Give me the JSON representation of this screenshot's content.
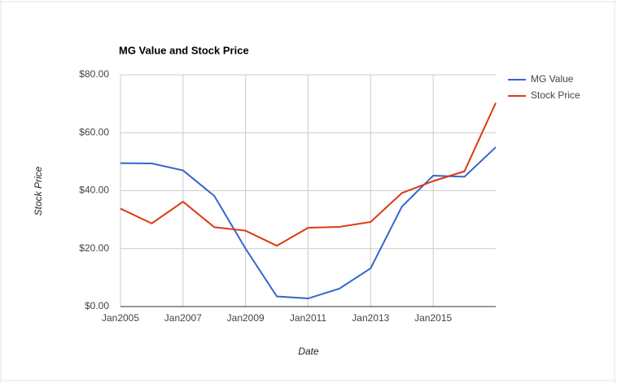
{
  "chart_data": {
    "type": "line",
    "title": "MG Value and Stock Price",
    "x_label": "Date",
    "y_label": "Stock Price",
    "x": [
      2005,
      2006,
      2007,
      2008,
      2009,
      2010,
      2011,
      2012,
      2013,
      2014,
      2015,
      2016,
      2017
    ],
    "series": [
      {
        "name": "MG Value",
        "color": "#3366cc",
        "values": [
          49.5,
          49.4,
          47,
          38.2,
          20,
          3.5,
          2.8,
          6.2,
          13.2,
          34.5,
          45.2,
          44.8,
          55
        ]
      },
      {
        "name": "Stock Price",
        "color": "#dc3912",
        "values": [
          33.8,
          28.7,
          36.2,
          27.4,
          26.2,
          21,
          27.2,
          27.5,
          29.2,
          39.2,
          43.3,
          46.7,
          70.3
        ]
      }
    ],
    "xlim": [
      2005,
      2017
    ],
    "xticks": [
      {
        "value": 2005,
        "label": "Jan2005"
      },
      {
        "value": 2007,
        "label": "Jan2007"
      },
      {
        "value": 2009,
        "label": "Jan2009"
      },
      {
        "value": 2011,
        "label": "Jan2011"
      },
      {
        "value": 2013,
        "label": "Jan2013"
      },
      {
        "value": 2015,
        "label": "Jan2015"
      }
    ],
    "ylim": [
      0,
      80
    ],
    "yticks": [
      {
        "value": 0,
        "label": "$0.00"
      },
      {
        "value": 20,
        "label": "$20.00"
      },
      {
        "value": 40,
        "label": "$40.00"
      },
      {
        "value": 60,
        "label": "$60.00"
      },
      {
        "value": 80,
        "label": "$80.00"
      }
    ],
    "grid": true,
    "legend": "right"
  }
}
